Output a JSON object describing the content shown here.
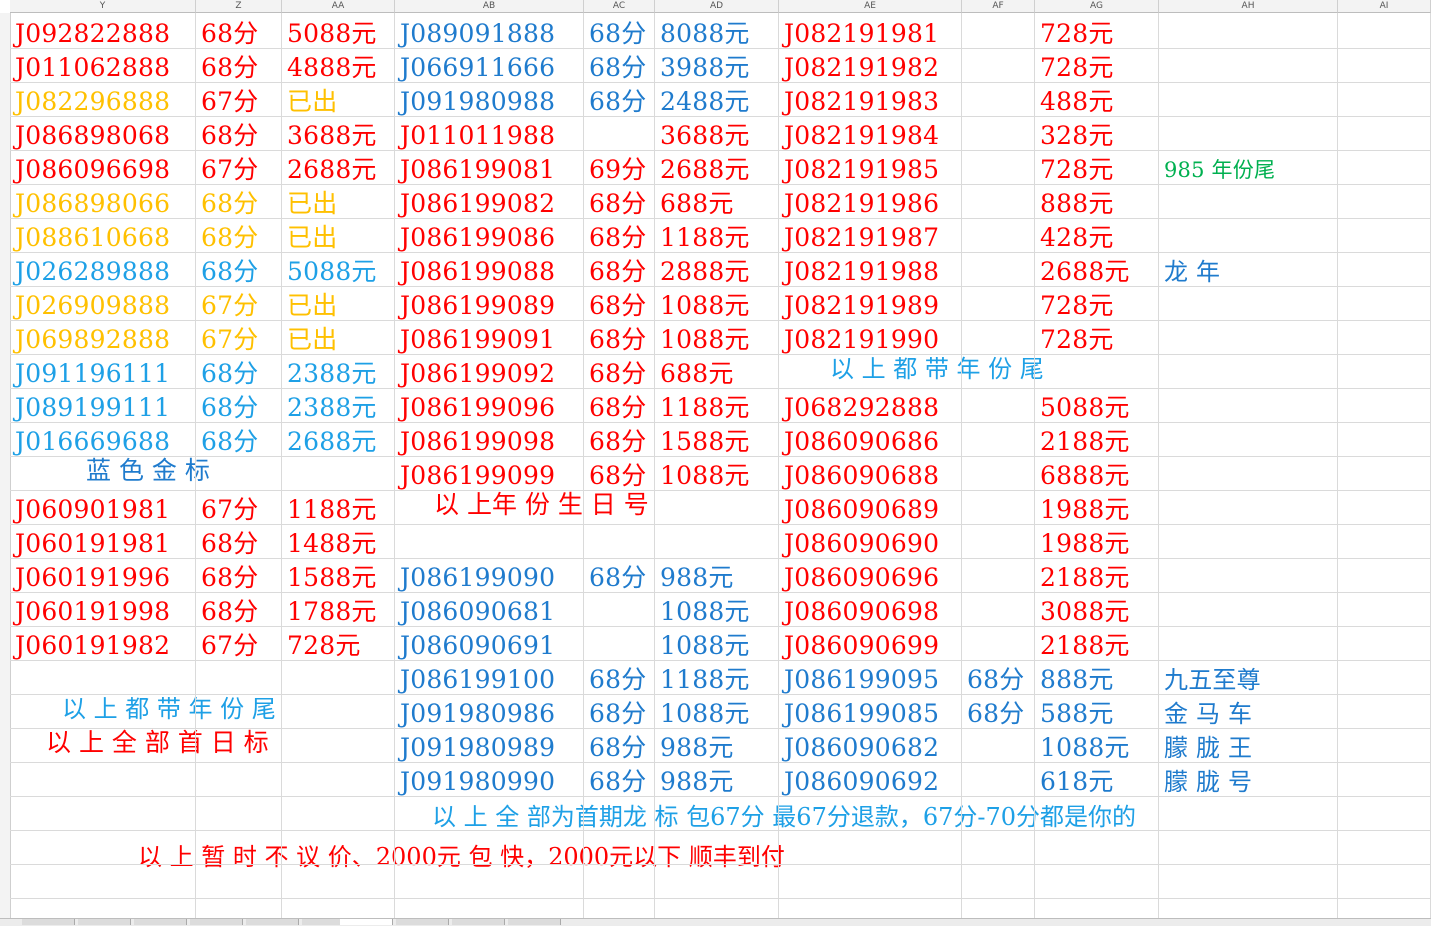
{
  "columns": [
    "Y",
    "Z",
    "AA",
    "AB",
    "AC",
    "AD",
    "AE",
    "AF",
    "AG",
    "AH",
    "AI"
  ],
  "rows": [
    [
      [
        "J092822888",
        "r"
      ],
      [
        "68分",
        "r"
      ],
      [
        "5088元",
        "r"
      ],
      [
        "J089091888",
        "b"
      ],
      [
        "68分",
        "b"
      ],
      [
        "8088元",
        "b"
      ],
      [
        "J082191981",
        "r"
      ],
      [
        "",
        ""
      ],
      [
        "728元",
        "r"
      ],
      [
        "",
        ""
      ]
    ],
    [
      [
        "J011062888",
        "r"
      ],
      [
        "68分",
        "r"
      ],
      [
        "4888元",
        "r"
      ],
      [
        "J066911666",
        "b"
      ],
      [
        "68分",
        "b"
      ],
      [
        "3988元",
        "b"
      ],
      [
        "J082191982",
        "r"
      ],
      [
        "",
        ""
      ],
      [
        "728元",
        "r"
      ],
      [
        "",
        ""
      ]
    ],
    [
      [
        "J082296888",
        "o"
      ],
      [
        "67分",
        "r"
      ],
      [
        "已出",
        "o"
      ],
      [
        "J091980988",
        "b"
      ],
      [
        "68分",
        "b"
      ],
      [
        "2488元",
        "b"
      ],
      [
        "J082191983",
        "r"
      ],
      [
        "",
        ""
      ],
      [
        "488元",
        "r"
      ],
      [
        "",
        ""
      ]
    ],
    [
      [
        "J086898068",
        "r"
      ],
      [
        "68分",
        "r"
      ],
      [
        "3688元",
        "r"
      ],
      [
        "J011011988",
        "r"
      ],
      [
        "",
        ""
      ],
      [
        "3688元",
        "r"
      ],
      [
        "J082191984",
        "r"
      ],
      [
        "",
        ""
      ],
      [
        "328元",
        "r"
      ],
      [
        "",
        ""
      ]
    ],
    [
      [
        "J086096698",
        "r"
      ],
      [
        "67分",
        "r"
      ],
      [
        "2688元",
        "r"
      ],
      [
        "J086199081",
        "r"
      ],
      [
        "69分",
        "r"
      ],
      [
        "2688元",
        "r"
      ],
      [
        "J082191985",
        "r"
      ],
      [
        "",
        ""
      ],
      [
        "728元",
        "r"
      ],
      [
        "985 年份尾",
        "g"
      ]
    ],
    [
      [
        "J086898066",
        "o"
      ],
      [
        "68分",
        "o"
      ],
      [
        "已出",
        "o"
      ],
      [
        "J086199082",
        "r"
      ],
      [
        "68分",
        "r"
      ],
      [
        "688元",
        "r"
      ],
      [
        "J082191986",
        "r"
      ],
      [
        "",
        ""
      ],
      [
        "888元",
        "r"
      ],
      [
        "",
        ""
      ]
    ],
    [
      [
        "J088610668",
        "o"
      ],
      [
        "68分",
        "o"
      ],
      [
        "已出",
        "o"
      ],
      [
        "J086199086",
        "r"
      ],
      [
        "68分",
        "r"
      ],
      [
        "1188元",
        "r"
      ],
      [
        "J082191987",
        "r"
      ],
      [
        "",
        ""
      ],
      [
        "428元",
        "r"
      ],
      [
        "",
        ""
      ]
    ],
    [
      [
        "J026289888",
        "s"
      ],
      [
        "68分",
        "s"
      ],
      [
        "5088元",
        "s"
      ],
      [
        "J086199088",
        "r"
      ],
      [
        "68分",
        "r"
      ],
      [
        "2888元",
        "r"
      ],
      [
        "J082191988",
        "r"
      ],
      [
        "",
        ""
      ],
      [
        "2688元",
        "r"
      ],
      [
        "龙 年",
        "b"
      ]
    ],
    [
      [
        "J026909888",
        "o"
      ],
      [
        "67分",
        "o"
      ],
      [
        "已出",
        "o"
      ],
      [
        "J086199089",
        "r"
      ],
      [
        "68分",
        "r"
      ],
      [
        "1088元",
        "r"
      ],
      [
        "J082191989",
        "r"
      ],
      [
        "",
        ""
      ],
      [
        "728元",
        "r"
      ],
      [
        "",
        ""
      ]
    ],
    [
      [
        "J069892888",
        "o"
      ],
      [
        "67分",
        "o"
      ],
      [
        "已出",
        "o"
      ],
      [
        "J086199091",
        "r"
      ],
      [
        "68分",
        "r"
      ],
      [
        "1088元",
        "r"
      ],
      [
        "J082191990",
        "r"
      ],
      [
        "",
        ""
      ],
      [
        "728元",
        "r"
      ],
      [
        "",
        ""
      ]
    ],
    [
      [
        "J091196111",
        "s"
      ],
      [
        "68分",
        "s"
      ],
      [
        "2388元",
        "s"
      ],
      [
        "J086199092",
        "r"
      ],
      [
        "68分",
        "r"
      ],
      [
        "688元",
        "r"
      ],
      [
        "",
        ""
      ],
      [
        "",
        ""
      ],
      [
        "",
        ""
      ],
      [
        "",
        ""
      ]
    ],
    [
      [
        "J089199111",
        "s"
      ],
      [
        "68分",
        "s"
      ],
      [
        "2388元",
        "s"
      ],
      [
        "J086199096",
        "r"
      ],
      [
        "68分",
        "r"
      ],
      [
        "1188元",
        "r"
      ],
      [
        "J068292888",
        "r"
      ],
      [
        "",
        ""
      ],
      [
        "5088元",
        "r"
      ],
      [
        "",
        ""
      ]
    ],
    [
      [
        "J016669688",
        "s"
      ],
      [
        "68分",
        "s"
      ],
      [
        "2688元",
        "s"
      ],
      [
        "J086199098",
        "r"
      ],
      [
        "68分",
        "r"
      ],
      [
        "1588元",
        "r"
      ],
      [
        "J086090686",
        "r"
      ],
      [
        "",
        ""
      ],
      [
        "2188元",
        "r"
      ],
      [
        "",
        ""
      ]
    ],
    [
      [
        "",
        ""
      ],
      [
        "",
        ""
      ],
      [
        "",
        ""
      ],
      [
        "J086199099",
        "r"
      ],
      [
        "68分",
        "r"
      ],
      [
        "1088元",
        "r"
      ],
      [
        "J086090688",
        "r"
      ],
      [
        "",
        ""
      ],
      [
        "6888元",
        "r"
      ],
      [
        "",
        ""
      ]
    ],
    [
      [
        "J060901981",
        "r"
      ],
      [
        "67分",
        "r"
      ],
      [
        "1188元",
        "r"
      ],
      [
        "",
        ""
      ],
      [
        "",
        ""
      ],
      [
        "",
        ""
      ],
      [
        "J086090689",
        "r"
      ],
      [
        "",
        ""
      ],
      [
        "1988元",
        "r"
      ],
      [
        "",
        ""
      ]
    ],
    [
      [
        "J060191981",
        "r"
      ],
      [
        "68分",
        "r"
      ],
      [
        "1488元",
        "r"
      ],
      [
        "",
        ""
      ],
      [
        "",
        ""
      ],
      [
        "",
        ""
      ],
      [
        "J086090690",
        "r"
      ],
      [
        "",
        ""
      ],
      [
        "1988元",
        "r"
      ],
      [
        "",
        ""
      ]
    ],
    [
      [
        "J060191996",
        "r"
      ],
      [
        "68分",
        "r"
      ],
      [
        "1588元",
        "r"
      ],
      [
        "J086199090",
        "b"
      ],
      [
        "68分",
        "b"
      ],
      [
        "988元",
        "b"
      ],
      [
        "J086090696",
        "r"
      ],
      [
        "",
        ""
      ],
      [
        "2188元",
        "r"
      ],
      [
        "",
        ""
      ]
    ],
    [
      [
        "J060191998",
        "r"
      ],
      [
        "68分",
        "r"
      ],
      [
        "1788元",
        "r"
      ],
      [
        "J086090681",
        "b"
      ],
      [
        "",
        ""
      ],
      [
        "1088元",
        "b"
      ],
      [
        "J086090698",
        "r"
      ],
      [
        "",
        ""
      ],
      [
        "3088元",
        "r"
      ],
      [
        "",
        ""
      ]
    ],
    [
      [
        "J060191982",
        "r"
      ],
      [
        "67分",
        "r"
      ],
      [
        "728元",
        "r"
      ],
      [
        "J086090691",
        "b"
      ],
      [
        "",
        ""
      ],
      [
        "1088元",
        "b"
      ],
      [
        "J086090699",
        "r"
      ],
      [
        "",
        ""
      ],
      [
        "2188元",
        "r"
      ],
      [
        "",
        ""
      ]
    ],
    [
      [
        "",
        ""
      ],
      [
        "",
        ""
      ],
      [
        "",
        ""
      ],
      [
        "J086199100",
        "b"
      ],
      [
        "68分",
        "b"
      ],
      [
        "1188元",
        "b"
      ],
      [
        "J086199095",
        "b"
      ],
      [
        "68分",
        "b"
      ],
      [
        "888元",
        "b"
      ],
      [
        "九五至尊",
        "b"
      ]
    ],
    [
      [
        "",
        ""
      ],
      [
        "",
        ""
      ],
      [
        "",
        ""
      ],
      [
        "J091980986",
        "b"
      ],
      [
        "68分",
        "b"
      ],
      [
        "1088元",
        "b"
      ],
      [
        "J086199085",
        "b"
      ],
      [
        "68分",
        "b"
      ],
      [
        "588元",
        "b"
      ],
      [
        "金 马 车",
        "b"
      ]
    ],
    [
      [
        "",
        ""
      ],
      [
        "",
        ""
      ],
      [
        "",
        ""
      ],
      [
        "J091980989",
        "b"
      ],
      [
        "68分",
        "b"
      ],
      [
        "988元",
        "b"
      ],
      [
        "J086090682",
        "b"
      ],
      [
        "",
        ""
      ],
      [
        "1088元",
        "b"
      ],
      [
        "朦 胧 王",
        "b"
      ]
    ],
    [
      [
        "",
        ""
      ],
      [
        "",
        ""
      ],
      [
        "",
        ""
      ],
      [
        "J091980990",
        "b"
      ],
      [
        "68分",
        "b"
      ],
      [
        "988元",
        "b"
      ],
      [
        "J086090692",
        "b"
      ],
      [
        "",
        ""
      ],
      [
        "618元",
        "b"
      ],
      [
        "朦 胧 号",
        "b"
      ]
    ]
  ],
  "notes": {
    "blue_gold": "蓝 色 金 标",
    "year_tail_right": "以 上 都 带 年 份  尾",
    "birthday": "以 上年 份 生 日 号",
    "year_tail_left": "以 上 都 带 年 份  尾",
    "first_day": "以 上 全 部 首 日 标",
    "dragon": "以  上  全  部为首期龙  标  包67分  最67分退款，67分-70分都是你的",
    "no_bargain": "以 上 暂 时 不 议 价、2000元 包 快，2000元以下    顺丰到付"
  }
}
